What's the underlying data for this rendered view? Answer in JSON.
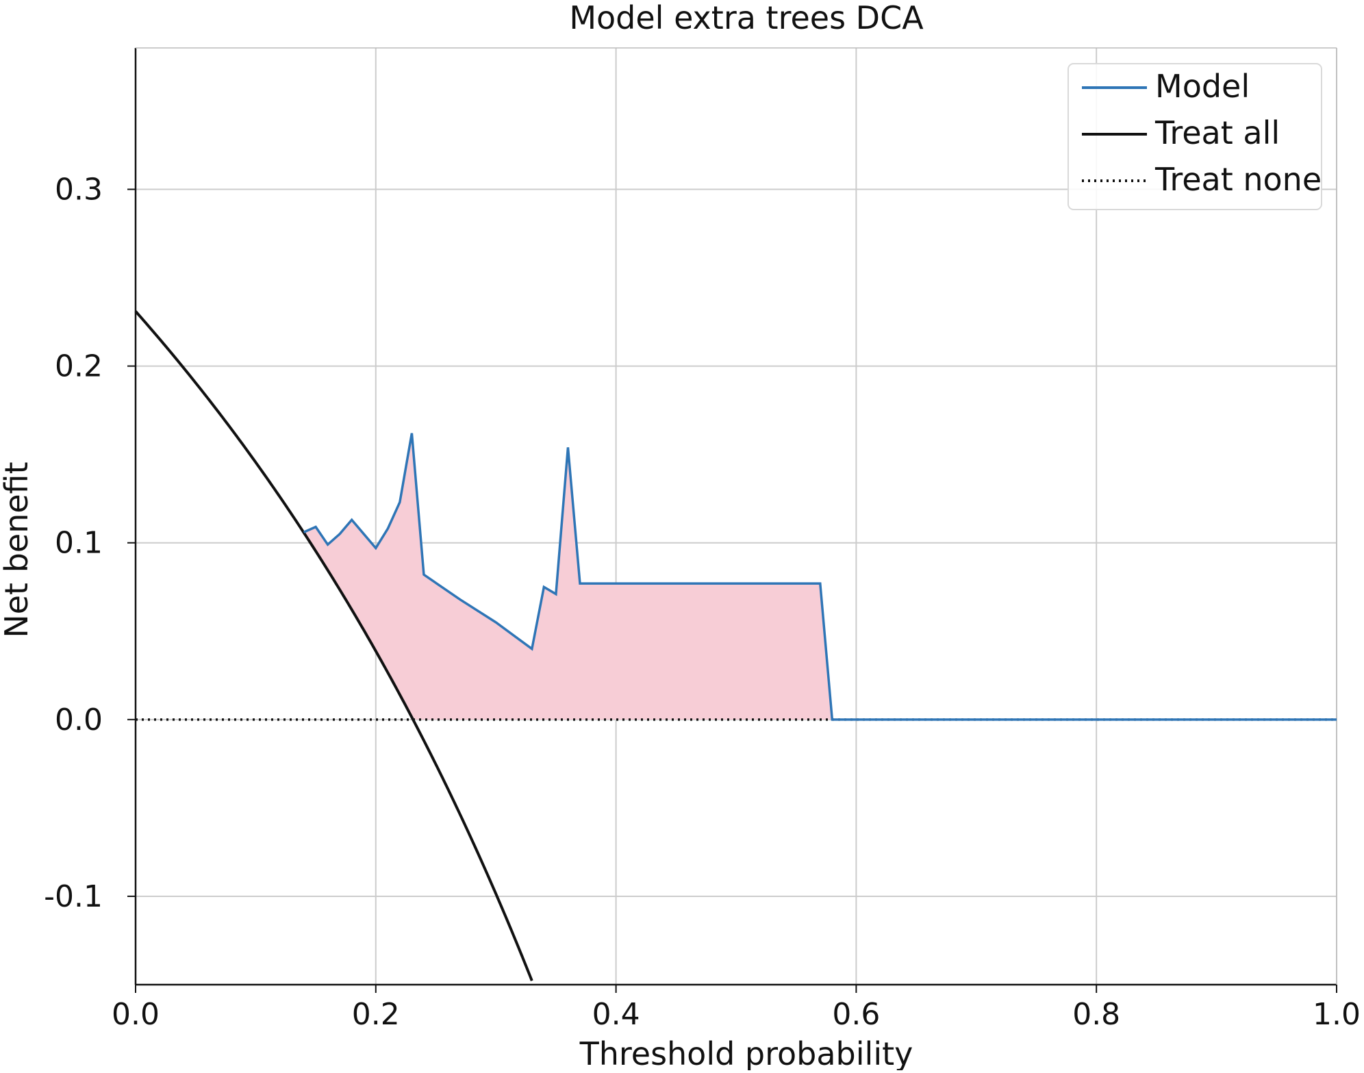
{
  "chart_data": {
    "type": "line",
    "title": "Model extra trees DCA",
    "xlabel": "Threshold probability",
    "ylabel": "Net benefit",
    "xlim": [
      0.0,
      1.0
    ],
    "ylim": [
      -0.15,
      0.38
    ],
    "grid": true,
    "legend_position": "top-right",
    "x_ticks": [
      0.0,
      0.2,
      0.4,
      0.6,
      0.8,
      1.0
    ],
    "x_tick_labels": [
      "0.0",
      "0.2",
      "0.4",
      "0.6",
      "0.8",
      "1.0"
    ],
    "y_ticks": [
      -0.1,
      0.0,
      0.1,
      0.2,
      0.3
    ],
    "y_tick_labels": [
      "-0.1",
      "0.0",
      "0.1",
      "0.2",
      "0.3"
    ],
    "series": [
      {
        "name": "Model",
        "style": "solid",
        "color": "#2e75b6",
        "x": [
          0.14,
          0.15,
          0.16,
          0.17,
          0.18,
          0.19,
          0.2,
          0.21,
          0.22,
          0.23,
          0.24,
          0.27,
          0.3,
          0.33,
          0.34,
          0.35,
          0.36,
          0.37,
          0.4,
          0.45,
          0.5,
          0.55,
          0.57,
          0.58,
          0.6,
          0.7,
          0.8,
          0.9,
          1.0
        ],
        "y": [
          0.106,
          0.109,
          0.099,
          0.105,
          0.113,
          0.105,
          0.097,
          0.108,
          0.123,
          0.162,
          0.082,
          0.068,
          0.055,
          0.04,
          0.075,
          0.071,
          0.154,
          0.077,
          0.077,
          0.077,
          0.077,
          0.077,
          0.077,
          0.0,
          0.0,
          0.0,
          0.0,
          0.0,
          0.0
        ]
      },
      {
        "name": "Treat all",
        "style": "solid",
        "color": "#111111",
        "prevalence": 0.231,
        "x_range": [
          0.0,
          0.33
        ]
      },
      {
        "name": "Treat none",
        "style": "dotted",
        "color": "#111111",
        "x": [
          0.0,
          1.0
        ],
        "y": [
          0.0,
          0.0
        ]
      }
    ],
    "shaded_region": {
      "between": [
        "Model",
        "max(Treat all, Treat none)"
      ],
      "color": "#f7cdd6"
    }
  }
}
